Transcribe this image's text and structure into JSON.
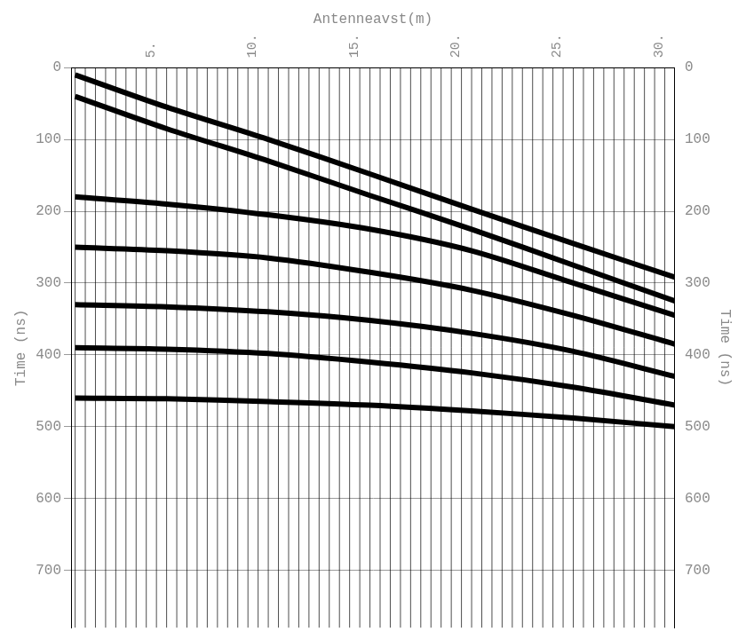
{
  "chart_data": {
    "type": "line",
    "x_label": "Antenneavst(m)",
    "y_label": "Time (ns)",
    "xlim": [
      0.3,
      30
    ],
    "xticks": [
      {
        "value": 5,
        "label": "5."
      },
      {
        "value": 10,
        "label": "10."
      },
      {
        "value": 15,
        "label": "15."
      },
      {
        "value": 20,
        "label": "20."
      },
      {
        "value": 25,
        "label": "25."
      },
      {
        "value": 30,
        "label": "30."
      }
    ],
    "ylim": [
      780,
      0
    ],
    "yticks": [
      0,
      100,
      200,
      300,
      400,
      500,
      600,
      700
    ],
    "grid": true,
    "traces": [
      0.5,
      1,
      1.5,
      2,
      2.5,
      3,
      3.5,
      4,
      4.5,
      5,
      5.5,
      6,
      6.5,
      7,
      7.5,
      8,
      8.5,
      9,
      9.5,
      10,
      10.5,
      11,
      11.5,
      12,
      12.5,
      13,
      13.5,
      14,
      14.5,
      15,
      15.5,
      16,
      16.5,
      17,
      17.5,
      18,
      18.5,
      19,
      19.5,
      20,
      20.5,
      21,
      21.5,
      22,
      22.5,
      23,
      23.5,
      24,
      24.5,
      25,
      25.5,
      26,
      26.5,
      27,
      27.5,
      28,
      28.5,
      29,
      29.5,
      30
    ],
    "x": [
      0.5,
      5,
      10,
      15,
      20,
      25,
      30
    ],
    "series": [
      {
        "color": "#000000",
        "values": [
          10,
          55,
          100,
          148,
          197,
          245,
          292
        ]
      },
      {
        "color": "#000000",
        "values": [
          40,
          85,
          130,
          178,
          225,
          275,
          325
        ]
      },
      {
        "color": "#000000",
        "values": [
          180,
          190,
          205,
          225,
          255,
          300,
          345
        ]
      },
      {
        "color": "#000000",
        "values": [
          250,
          255,
          265,
          285,
          310,
          345,
          385
        ]
      },
      {
        "color": "#000000",
        "values": [
          330,
          333,
          340,
          352,
          370,
          395,
          430
        ]
      },
      {
        "color": "#000000",
        "values": [
          390,
          392,
          398,
          410,
          425,
          445,
          470
        ]
      },
      {
        "color": "#000000",
        "values": [
          460,
          461,
          465,
          470,
          478,
          488,
          500
        ]
      }
    ]
  }
}
